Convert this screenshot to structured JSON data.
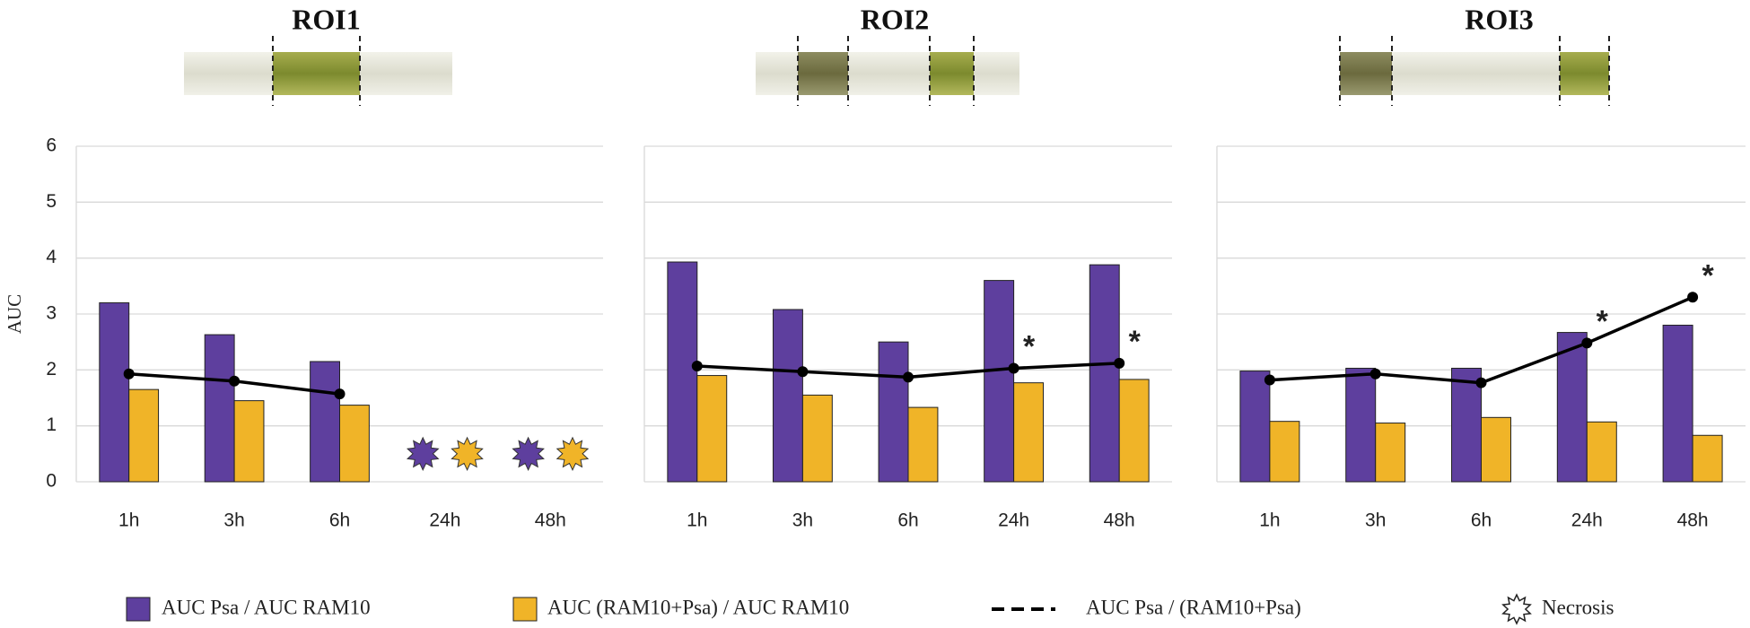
{
  "chart_data": [
    {
      "type": "bar",
      "title": "ROI1",
      "y_label": "AUC",
      "categories": [
        "1h",
        "3h",
        "6h",
        "24h",
        "48h"
      ],
      "series": [
        {
          "name": "AUC Psa / AUC RAM10",
          "color": "#5e3f9e",
          "values": [
            3.2,
            2.63,
            2.15,
            null,
            null
          ]
        },
        {
          "name": "AUC (RAM10+Psa) / AUC RAM10",
          "color": "#f0b428",
          "values": [
            1.65,
            1.45,
            1.37,
            null,
            null
          ]
        },
        {
          "name": "AUC Psa / (RAM10+Psa)",
          "color": "#000000",
          "type": "line",
          "values": [
            1.93,
            1.8,
            1.57,
            null,
            null
          ]
        }
      ],
      "necrosis": [
        false,
        false,
        false,
        true,
        true
      ],
      "ylim": [
        0,
        6
      ],
      "yticks": [
        0,
        1,
        2,
        3,
        4,
        5,
        6
      ],
      "ytick_labels": true,
      "grid": true
    },
    {
      "type": "bar",
      "title": "ROI2",
      "categories": [
        "1h",
        "3h",
        "6h",
        "24h",
        "48h"
      ],
      "series": [
        {
          "color": "#5e3f9e",
          "values": [
            3.93,
            3.08,
            2.5,
            3.6,
            3.88
          ]
        },
        {
          "color": "#f0b428",
          "values": [
            1.9,
            1.55,
            1.33,
            1.77,
            1.83
          ]
        },
        {
          "color": "#000000",
          "type": "line",
          "values": [
            2.07,
            1.97,
            1.87,
            2.03,
            2.12
          ]
        }
      ],
      "annotations": [
        null,
        null,
        null,
        "*",
        "*"
      ],
      "ylim": [
        0,
        6
      ],
      "yticks": [
        0,
        1,
        2,
        3,
        4,
        5,
        6
      ],
      "ytick_labels": false,
      "grid": true
    },
    {
      "type": "bar",
      "title": "ROI3",
      "categories": [
        "1h",
        "3h",
        "6h",
        "24h",
        "48h"
      ],
      "series": [
        {
          "color": "#5e3f9e",
          "values": [
            1.98,
            2.03,
            2.03,
            2.67,
            2.8
          ]
        },
        {
          "color": "#f0b428",
          "values": [
            1.08,
            1.05,
            1.15,
            1.07,
            0.83
          ]
        },
        {
          "color": "#000000",
          "type": "line",
          "values": [
            1.82,
            1.93,
            1.77,
            2.48,
            3.3
          ]
        }
      ],
      "annotations": [
        null,
        null,
        null,
        "*",
        "*"
      ],
      "ylim": [
        0,
        6
      ],
      "yticks": [
        0,
        1,
        2,
        3,
        4,
        5,
        6
      ],
      "ytick_labels": false,
      "grid": true
    }
  ],
  "legend": {
    "necrosis": "Necrosis"
  }
}
